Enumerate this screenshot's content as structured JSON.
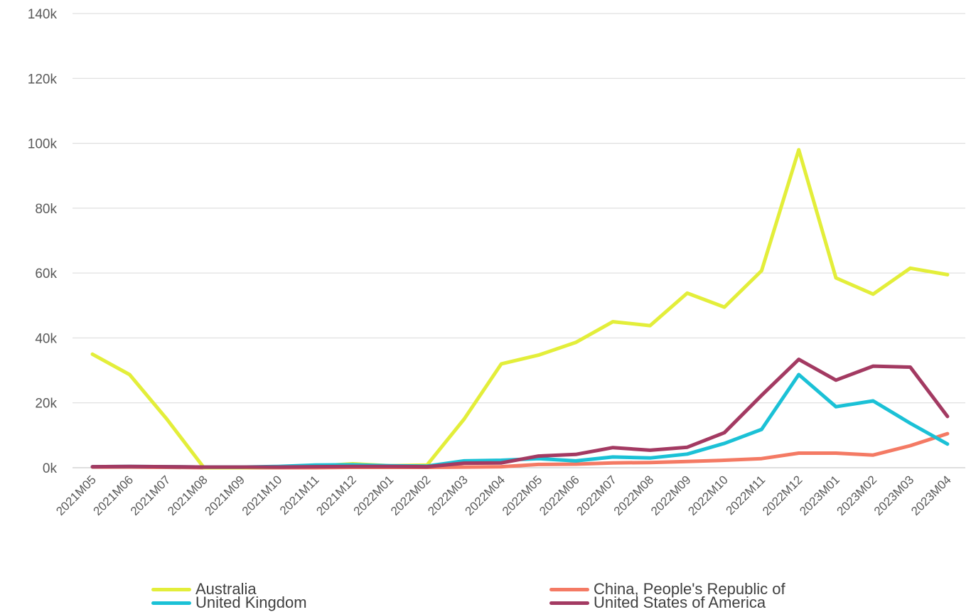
{
  "chart_data": {
    "type": "line",
    "title": "",
    "xlabel": "",
    "ylabel": "",
    "x": [
      "2021M05",
      "2021M06",
      "2021M07",
      "2021M08",
      "2021M09",
      "2021M10",
      "2021M11",
      "2021M12",
      "2022M01",
      "2022M02",
      "2022M03",
      "2022M04",
      "2022M05",
      "2022M06",
      "2022M07",
      "2022M08",
      "2022M09",
      "2022M10",
      "2022M11",
      "2022M12",
      "2023M01",
      "2023M02",
      "2023M03",
      "2023M04"
    ],
    "ylim": [
      0,
      140000
    ],
    "yticks": [
      0,
      20000,
      40000,
      60000,
      80000,
      100000,
      120000,
      140000
    ],
    "ytick_labels": [
      "0k",
      "20k",
      "40k",
      "60k",
      "80k",
      "100k",
      "120k",
      "140k"
    ],
    "grid": true,
    "legend_position": "bottom",
    "series": [
      {
        "name": "Australia",
        "color": "#E3EE3A",
        "values": [
          35000,
          28700,
          15000,
          0,
          0,
          200,
          500,
          1200,
          600,
          800,
          15000,
          32000,
          34700,
          38600,
          45000,
          43800,
          53800,
          49500,
          60700,
          98000,
          58500,
          53500,
          61500,
          59500
        ]
      },
      {
        "name": "China, People's Republic of",
        "color": "#F47A64",
        "values": [
          200,
          200,
          100,
          0,
          0,
          0,
          0,
          100,
          100,
          100,
          200,
          300,
          1000,
          1100,
          1500,
          1600,
          1900,
          2300,
          2800,
          4500,
          4500,
          3900,
          6800,
          10500
        ]
      },
      {
        "name": "United Kingdom",
        "color": "#1BC1D6",
        "values": [
          300,
          400,
          300,
          200,
          200,
          400,
          800,
          900,
          600,
          500,
          2100,
          2300,
          2800,
          2100,
          3300,
          3000,
          4200,
          7500,
          11800,
          28700,
          18800,
          20600,
          13700,
          7300
        ]
      },
      {
        "name": "United States of America",
        "color": "#A33A62",
        "values": [
          300,
          400,
          300,
          200,
          200,
          200,
          300,
          400,
          400,
          300,
          1400,
          1500,
          3600,
          4100,
          6200,
          5400,
          6300,
          10800,
          22300,
          33400,
          27000,
          31300,
          31000,
          15800
        ]
      }
    ]
  }
}
